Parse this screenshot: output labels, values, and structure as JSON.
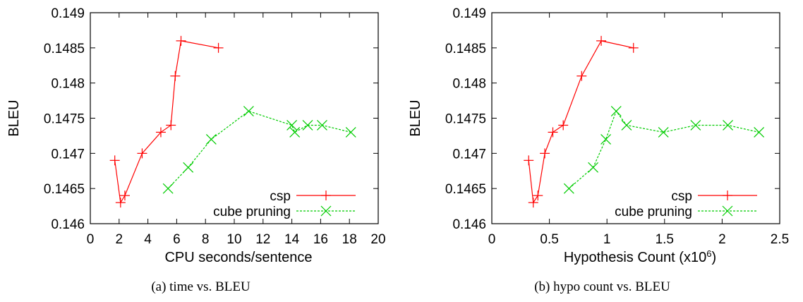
{
  "captions": [
    "(a) time vs. BLEU",
    "(b) hypo count vs. BLEU"
  ],
  "colors": {
    "csp": "#ff0000",
    "cube": "#00cc00"
  },
  "chart_data": [
    {
      "type": "line",
      "xlabel": "CPU seconds/sentence",
      "ylabel": "BLEU",
      "xlim": [
        0,
        20
      ],
      "ylim": [
        0.146,
        0.149
      ],
      "xticks": [
        "0",
        "2",
        "4",
        "6",
        "8",
        "10",
        "12",
        "14",
        "16",
        "18",
        "20"
      ],
      "yticks": [
        "0.146",
        "0.1465",
        "0.147",
        "0.1475",
        "0.148",
        "0.1485",
        "0.149"
      ],
      "legend_position": "bottom-right",
      "series": [
        {
          "name": "csp",
          "marker": "plus",
          "line": "solid",
          "x": [
            1.7,
            2.1,
            2.4,
            3.6,
            4.9,
            5.6,
            5.9,
            6.3,
            8.9
          ],
          "y": [
            0.1469,
            0.1463,
            0.1464,
            0.147,
            0.1473,
            0.1474,
            0.1481,
            0.1486,
            0.1485
          ]
        },
        {
          "name": "cube pruning",
          "marker": "cross",
          "line": "dashed",
          "x": [
            5.4,
            6.8,
            8.4,
            11.0,
            14.0,
            14.2,
            15.1,
            16.1,
            18.1
          ],
          "y": [
            0.1465,
            0.1468,
            0.1472,
            0.1476,
            0.1474,
            0.1473,
            0.1474,
            0.1474,
            0.1473
          ]
        }
      ]
    },
    {
      "type": "line",
      "xlabel": "Hypothesis Count (x10",
      "xlabel_sup": "6",
      "xlabel_end": ")",
      "ylabel": "BLEU",
      "xlim": [
        0,
        2.5
      ],
      "ylim": [
        0.146,
        0.149
      ],
      "xticks": [
        "0",
        "0.5",
        "1",
        "1.5",
        "2",
        "2.5"
      ],
      "yticks": [
        "0.146",
        "0.1465",
        "0.147",
        "0.1475",
        "0.148",
        "0.1485",
        "0.149"
      ],
      "legend_position": "bottom-right",
      "series": [
        {
          "name": "csp",
          "marker": "plus",
          "line": "solid",
          "x": [
            0.32,
            0.36,
            0.4,
            0.46,
            0.53,
            0.62,
            0.78,
            0.95,
            1.23
          ],
          "y": [
            0.1469,
            0.1463,
            0.1464,
            0.147,
            0.1473,
            0.1474,
            0.1481,
            0.1486,
            0.1485
          ]
        },
        {
          "name": "cube pruning",
          "marker": "cross",
          "line": "dashed",
          "x": [
            0.67,
            0.88,
            0.99,
            1.08,
            1.17,
            1.49,
            1.77,
            2.05,
            2.32
          ],
          "y": [
            0.1465,
            0.1468,
            0.1472,
            0.1476,
            0.1474,
            0.1473,
            0.1474,
            0.1474,
            0.1473
          ]
        }
      ]
    }
  ]
}
